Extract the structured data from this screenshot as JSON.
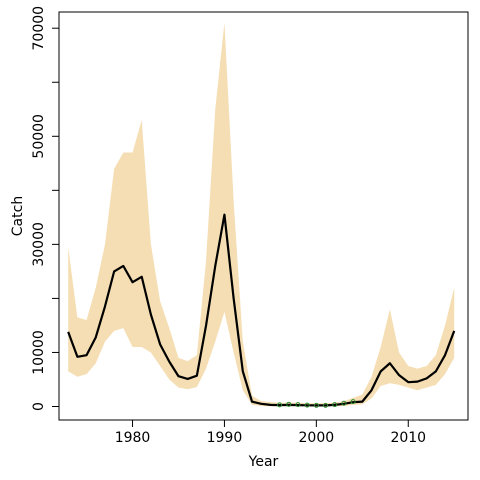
{
  "chart_data": {
    "type": "line",
    "title": "",
    "xlabel": "Year",
    "ylabel": "Catch",
    "xlim": [
      1972,
      2016.5
    ],
    "ylim": [
      -2500,
      73000
    ],
    "x_ticks": [
      1980,
      1990,
      2000,
      2010
    ],
    "y_ticks": [
      0,
      10000,
      30000,
      50000,
      70000
    ],
    "y_minor_ticks": [
      20000,
      40000,
      60000
    ],
    "band_color": "#F5DEB3",
    "line_color": "#000000",
    "obs_color": "#2E8B2E",
    "series": [
      {
        "role": "estimate",
        "x": [
          1973,
          1974,
          1975,
          1976,
          1977,
          1978,
          1979,
          1980,
          1981,
          1982,
          1983,
          1984,
          1985,
          1986,
          1987,
          1988,
          1989,
          1990,
          1991,
          1992,
          1993,
          1994,
          1995,
          1996,
          1997,
          1998,
          1999,
          2000,
          2001,
          2002,
          2003,
          2004,
          2005,
          2006,
          2007,
          2008,
          2009,
          2010,
          2011,
          2012,
          2013,
          2014,
          2015
        ],
        "y": [
          13800,
          9200,
          9500,
          12800,
          18500,
          25000,
          26000,
          23000,
          24000,
          17000,
          11500,
          8300,
          5600,
          5100,
          5700,
          15000,
          26000,
          35500,
          20000,
          6500,
          900,
          500,
          300,
          250,
          300,
          250,
          220,
          200,
          200,
          300,
          500,
          800,
          900,
          3000,
          6500,
          8000,
          5800,
          4500,
          4600,
          5200,
          6500,
          9500,
          14000
        ],
        "lower": [
          6500,
          5500,
          6000,
          8000,
          12000,
          14000,
          14500,
          11000,
          11000,
          10000,
          7500,
          5000,
          3500,
          3200,
          3600,
          7000,
          12000,
          17500,
          10000,
          3000,
          300,
          100,
          50,
          50,
          50,
          50,
          50,
          50,
          50,
          50,
          100,
          300,
          400,
          1500,
          3800,
          4300,
          4000,
          3500,
          3000,
          3500,
          4000,
          6000,
          9000
        ],
        "upper": [
          29500,
          16500,
          16000,
          22000,
          30000,
          44000,
          47000,
          47000,
          53000,
          30000,
          19500,
          14500,
          9000,
          8400,
          9500,
          27000,
          55000,
          71000,
          38000,
          12000,
          2000,
          1000,
          800,
          700,
          700,
          700,
          600,
          600,
          600,
          700,
          1000,
          1600,
          2200,
          5500,
          11000,
          18000,
          10000,
          7500,
          7000,
          7500,
          9500,
          15000,
          22000
        ]
      },
      {
        "role": "observed",
        "x": [
          1996,
          1997,
          1998,
          1999,
          2000,
          2001,
          2002,
          2003,
          2004
        ],
        "y": [
          300,
          400,
          350,
          250,
          200,
          200,
          350,
          600,
          900
        ]
      }
    ]
  }
}
